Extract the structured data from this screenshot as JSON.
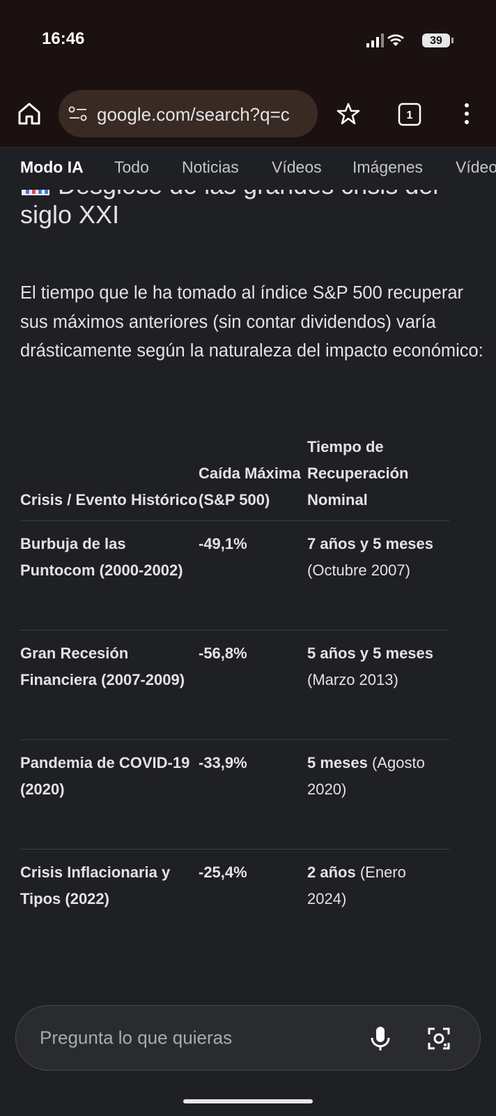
{
  "status_bar": {
    "time": "16:46",
    "battery": "39"
  },
  "browser": {
    "url": "google.com/search?q=c",
    "tab_count": "1"
  },
  "tabs": [
    "Modo IA",
    "Todo",
    "Noticias",
    "Vídeos",
    "Imágenes",
    "Vídeos"
  ],
  "content": {
    "heading": "Desglose de las grandes crisis del siglo XXI",
    "paragraph": "El tiempo que le ha tomado al índice S&P 500 recuperar sus máximos anteriores (sin contar dividendos) varía drásticamente según la naturaleza del impacto económico:",
    "table": {
      "headers": [
        "Crisis / Evento Histórico",
        "Caída Máxima (S&P 500)",
        "Tiempo de Recuperación Nominal"
      ],
      "rows": [
        {
          "crisis": "Burbuja de las Puntocom (2000-2002)",
          "drop": "-49,1%",
          "recovery": "7 años y 5 meses",
          "detail": "(Octubre 2007)"
        },
        {
          "crisis": "Gran Recesión Financiera (2007-2009)",
          "drop": "-56,8%",
          "recovery": "5 años y 5 meses",
          "detail": "(Marzo 2013)"
        },
        {
          "crisis": "Pandemia de COVID-19 (2020)",
          "drop": "-33,9%",
          "recovery": "5 meses",
          "detail": "(Agosto 2020)"
        },
        {
          "crisis": "Crisis Inflacionaria y Tipos (2022)",
          "drop": "-25,4%",
          "recovery": "2 años",
          "detail": "(Enero 2024)"
        }
      ]
    }
  },
  "input": {
    "placeholder": "Pregunta lo que quieras"
  }
}
